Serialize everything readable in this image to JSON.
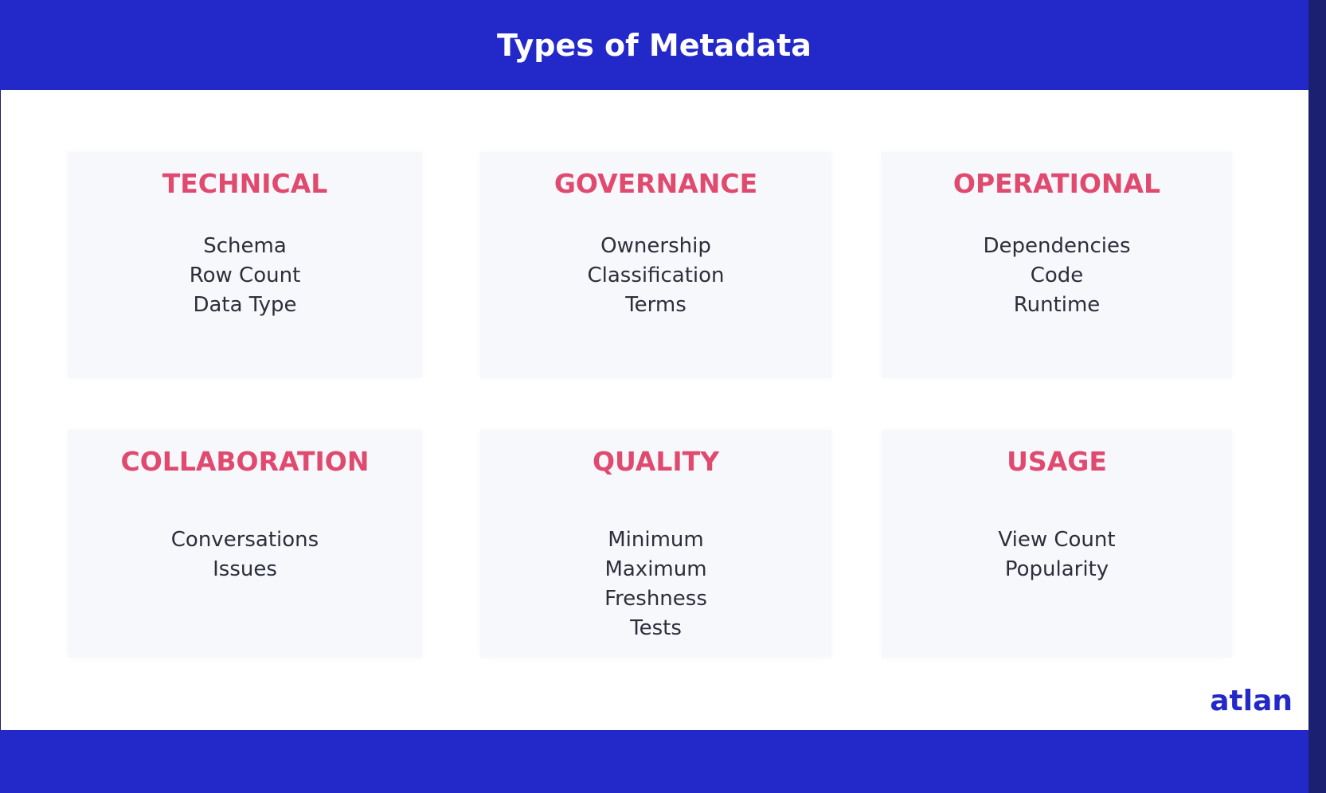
{
  "header": {
    "title": "Types of Metadata"
  },
  "cards": [
    {
      "title": "TECHNICAL",
      "items": [
        "Schema",
        "Row Count",
        "Data Type"
      ]
    },
    {
      "title": "GOVERNANCE",
      "items": [
        "Ownership",
        "Classification",
        "Terms"
      ]
    },
    {
      "title": "OPERATIONAL",
      "items": [
        "Dependencies",
        "Code",
        "Runtime"
      ]
    },
    {
      "title": "COLLABORATION",
      "items": [
        "Conversations",
        "Issues"
      ]
    },
    {
      "title": "QUALITY",
      "items": [
        "Minimum",
        "Maximum",
        "Freshness",
        "Tests"
      ]
    },
    {
      "title": "USAGE",
      "items": [
        "View Count",
        "Popularity"
      ]
    }
  ],
  "logo": "atlan"
}
